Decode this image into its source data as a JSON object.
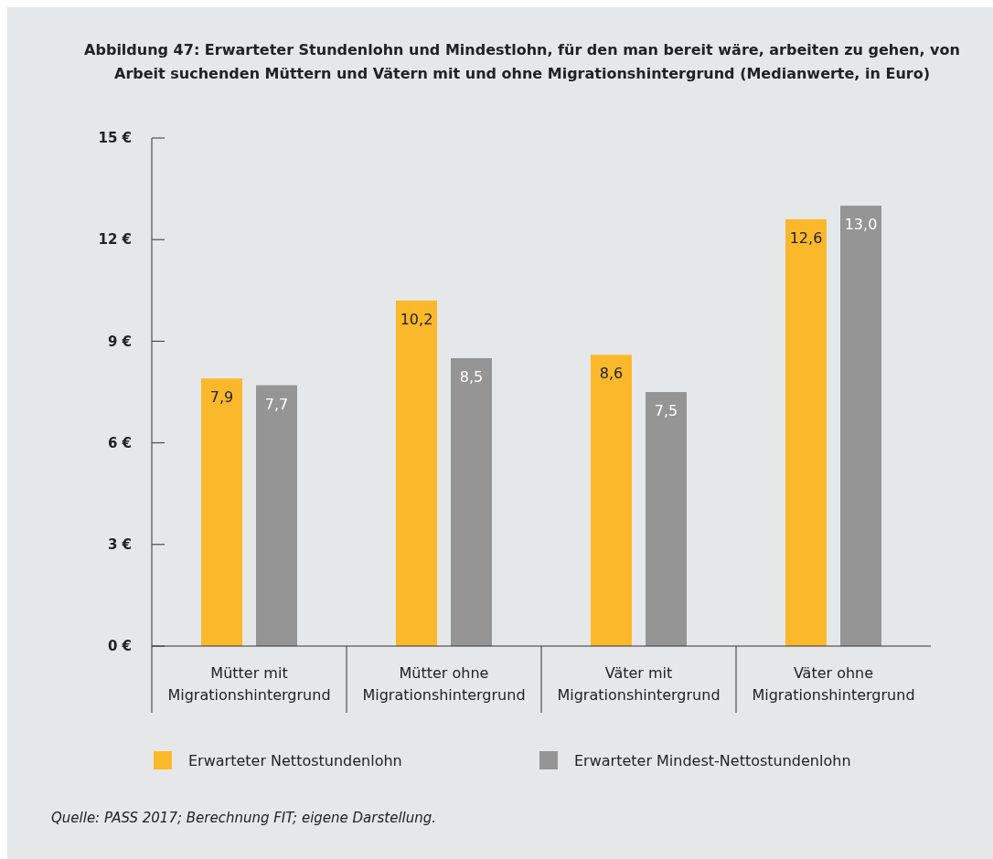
{
  "chart_data": {
    "type": "bar",
    "title": "Abbildung 47: Erwarteter Stundenlohn und Mindestlohn, für den man bereit wäre, arbeiten zu gehen, von Arbeit suchenden Müttern und Vätern mit und ohne Migrationshintergrund (Medianwerte, in Euro)",
    "categories": [
      "Mütter mit Migrationshintergrund",
      "Mütter ohne Migrationshintergrund",
      "Väter mit Migrationshintergrund",
      "Väter ohne Migrationshintergrund"
    ],
    "series": [
      {
        "name": "Erwarteter Nettostundenlohn",
        "color": "#fbb82b",
        "values": [
          7.9,
          10.2,
          8.6,
          12.6
        ],
        "value_labels": [
          "7,9",
          "10,2",
          "8,6",
          "12,6"
        ]
      },
      {
        "name": "Erwarteter Mindest-Nettostundenlohn",
        "color": "#949594",
        "values": [
          7.7,
          8.5,
          7.5,
          13.0
        ],
        "value_labels": [
          "7,7",
          "8,5",
          "7,5",
          "13,0"
        ]
      }
    ],
    "ylim": [
      0,
      15
    ],
    "yticks": [
      {
        "value": 0,
        "label": "0 €"
      },
      {
        "value": 3,
        "label": "3 €"
      },
      {
        "value": 6,
        "label": "6 €"
      },
      {
        "value": 9,
        "label": "9 €"
      },
      {
        "value": 12,
        "label": "12 €"
      },
      {
        "value": 15,
        "label": "15 €"
      }
    ],
    "grid": false,
    "legend": "bottom",
    "annotations": [
      "Quelle: PASS 2017; Berechnung FIT; eigene Darstellung."
    ]
  }
}
